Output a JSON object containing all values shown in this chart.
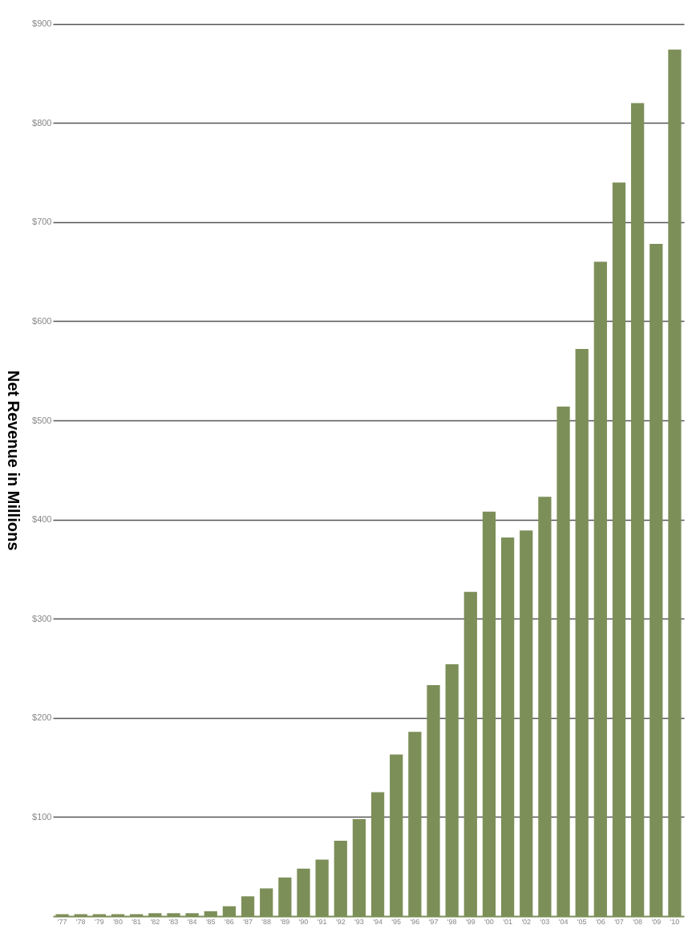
{
  "chart_data": {
    "type": "bar",
    "ylabel": "Net Revenue in Millions",
    "categories": [
      "'77",
      "'78",
      "'79",
      "'80",
      "'81",
      "'82",
      "'83",
      "'84",
      "'85",
      "'86",
      "'87",
      "'88",
      "'89",
      "'90",
      "'91",
      "'92",
      "'93",
      "'94",
      "'95",
      "'96",
      "'97",
      "'98",
      "'99",
      "'00",
      "'01",
      "'02",
      "'03",
      "'04",
      "'05",
      "'06",
      "'07",
      "'08",
      "'09",
      "'10"
    ],
    "values": [
      2,
      2,
      2,
      2,
      2,
      3,
      3,
      3,
      5,
      10,
      20,
      28,
      39,
      48,
      57,
      76,
      98,
      125,
      163,
      186,
      233,
      254,
      327,
      408,
      382,
      389,
      423,
      514,
      572,
      660,
      740,
      820,
      678,
      874
    ],
    "color": "#7d8f58",
    "ylim": [
      0,
      920
    ],
    "yticks": [
      {
        "value": 100,
        "label": "$100"
      },
      {
        "value": 200,
        "label": "$200"
      },
      {
        "value": 300,
        "label": "$300"
      },
      {
        "value": 400,
        "label": "$400"
      },
      {
        "value": 500,
        "label": "$500"
      },
      {
        "value": 600,
        "label": "$600"
      },
      {
        "value": 700,
        "label": "$700"
      },
      {
        "value": 800,
        "label": "$800"
      },
      {
        "value": 900,
        "label": "$900"
      }
    ],
    "grid": "y"
  }
}
